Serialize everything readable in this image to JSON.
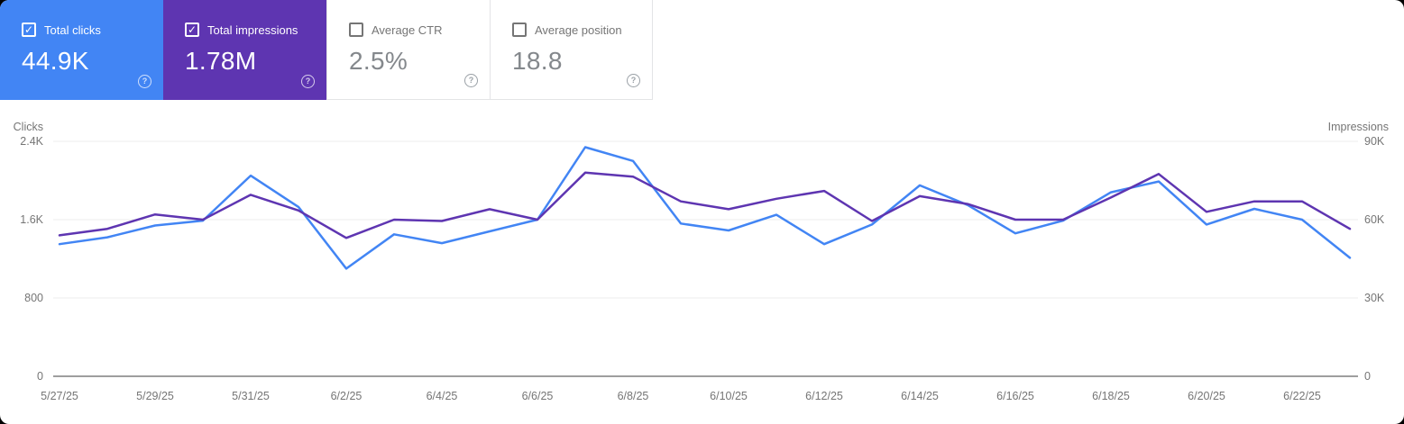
{
  "cards": [
    {
      "label": "Total clicks",
      "value": "44.9K",
      "checked": true,
      "bg": "#4285f4"
    },
    {
      "label": "Total impressions",
      "value": "1.78M",
      "checked": true,
      "bg": "#5e35b1"
    },
    {
      "label": "Average CTR",
      "value": "2.5%",
      "checked": false,
      "bg": "#ffffff"
    },
    {
      "label": "Average position",
      "value": "18.8",
      "checked": false,
      "bg": "#ffffff"
    }
  ],
  "icons": {
    "help": "?",
    "check": "✓"
  },
  "chart_data": {
    "type": "line",
    "left_axis": {
      "label": "Clicks",
      "range": [
        0,
        2400
      ],
      "ticks": [
        {
          "v": 0,
          "t": "0"
        },
        {
          "v": 800,
          "t": "800"
        },
        {
          "v": 1600,
          "t": "1.6K"
        },
        {
          "v": 2400,
          "t": "2.4K"
        }
      ]
    },
    "right_axis": {
      "label": "Impressions",
      "range": [
        0,
        90000
      ],
      "ticks": [
        {
          "v": 0,
          "t": "0"
        },
        {
          "v": 30000,
          "t": "30K"
        },
        {
          "v": 60000,
          "t": "60K"
        },
        {
          "v": 90000,
          "t": "90K"
        }
      ]
    },
    "x_tick_labels": [
      "5/27/25",
      "5/29/25",
      "5/31/25",
      "6/2/25",
      "6/4/25",
      "6/6/25",
      "6/8/25",
      "6/10/25",
      "6/12/25",
      "6/14/25",
      "6/16/25",
      "6/18/25",
      "6/20/25",
      "6/22/25"
    ],
    "x_tick_every": 2,
    "grid": "horizontal",
    "legend": "none",
    "series": [
      {
        "name": "Total clicks",
        "axis": "left",
        "color": "#4285f4",
        "values": [
          1350,
          1420,
          1540,
          1590,
          2050,
          1730,
          1100,
          1450,
          1360,
          1480,
          1600,
          2340,
          2200,
          1560,
          1490,
          1650,
          1350,
          1550,
          1950,
          1750,
          1460,
          1590,
          1880,
          1990,
          1550,
          1710,
          1600,
          1210
        ]
      },
      {
        "name": "Total impressions",
        "axis": "right",
        "color": "#5e35b1",
        "values": [
          54000,
          56500,
          62000,
          60000,
          69500,
          63500,
          53000,
          60000,
          59500,
          64000,
          60000,
          78000,
          76500,
          67000,
          64000,
          68000,
          71000,
          59500,
          69000,
          66000,
          60000,
          60000,
          68500,
          77500,
          63000,
          67000,
          67000,
          56500
        ]
      }
    ]
  }
}
